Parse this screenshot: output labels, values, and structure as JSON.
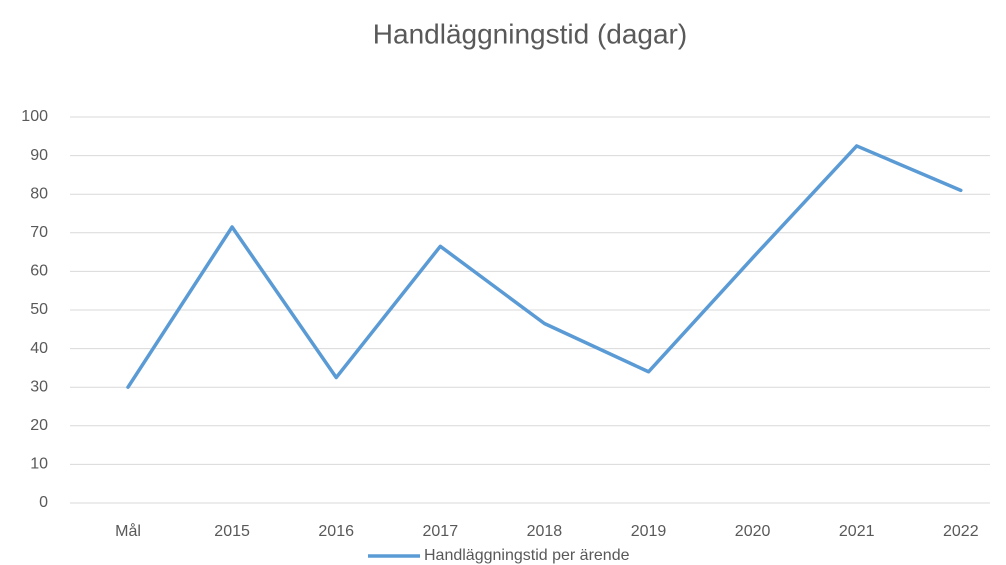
{
  "chart_data": {
    "type": "line",
    "title": "Handläggningstid (dagar)",
    "categories": [
      "Mål",
      "2015",
      "2016",
      "2017",
      "2018",
      "2019",
      "2020",
      "2021",
      "2022"
    ],
    "series": [
      {
        "name": "Handläggningstid per ärende",
        "color": "#5b9bd5",
        "values": [
          30,
          71.5,
          32.5,
          66.5,
          46.5,
          34,
          63.5,
          92.5,
          81
        ]
      }
    ],
    "ylim": [
      0,
      100
    ],
    "yticks": [
      0,
      10,
      20,
      30,
      40,
      50,
      60,
      70,
      80,
      90,
      100
    ],
    "grid": true,
    "legend": "bottom"
  }
}
